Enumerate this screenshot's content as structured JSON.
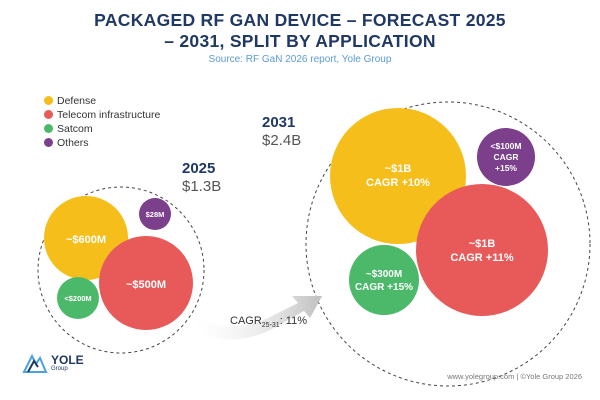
{
  "header": {
    "title_line1": "PACKAGED RF GAN DEVICE – FORECAST 2025",
    "title_line2": "– 2031, SPLIT BY APPLICATION",
    "source": "Source: RF GaN 2026 report, Yole Group"
  },
  "legend": [
    {
      "label": "Defense",
      "color": "#f6be1a"
    },
    {
      "label": "Telecom infrastructure",
      "color": "#e85a5a"
    },
    {
      "label": "Satcom",
      "color": "#4cb86a"
    },
    {
      "label": "Others",
      "color": "#7b3f8c"
    }
  ],
  "chart_data": {
    "type": "bubble",
    "title": "PACKAGED RF GAN DEVICE – FORECAST 2025 – 2031, SPLIT BY APPLICATION",
    "years": [
      {
        "year": "2025",
        "total": "$1.3B",
        "bubbles": [
          {
            "series": "Defense",
            "value_musd": 600,
            "label": "~$600M"
          },
          {
            "series": "Telecom infrastructure",
            "value_musd": 500,
            "label": "~$500M"
          },
          {
            "series": "Satcom",
            "value_musd": 200,
            "label": "<$200M"
          },
          {
            "series": "Others",
            "value_musd": 28,
            "label": "$28M"
          }
        ]
      },
      {
        "year": "2031",
        "total": "$2.4B",
        "bubbles": [
          {
            "series": "Defense",
            "value_musd": 1000,
            "label": "~$1B",
            "cagr": "CAGR +10%"
          },
          {
            "series": "Telecom infrastructure",
            "value_musd": 1000,
            "label": "~$1B",
            "cagr": "CAGR +11%"
          },
          {
            "series": "Satcom",
            "value_musd": 300,
            "label": "~$300M",
            "cagr": "CAGR +15%"
          },
          {
            "series": "Others",
            "value_musd": 100,
            "label": "<$100M",
            "cagr": "CAGR +15%"
          }
        ]
      }
    ],
    "cagr_arrow": {
      "prefix": "CAGR",
      "sub": "25-31",
      "value": ": 11%"
    }
  },
  "footer": {
    "logo": "YOLE",
    "logo_sub": "Group",
    "credit": "www.yolegroup.com | ©Yole Group 2026"
  }
}
